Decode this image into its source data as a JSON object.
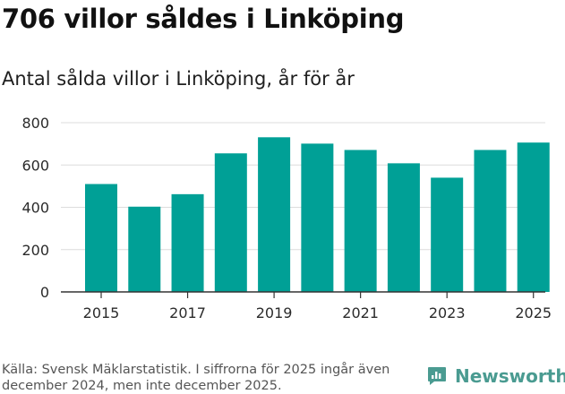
{
  "chart_data": {
    "type": "bar",
    "title": "706 villor såldes i Linköping",
    "subtitle": "Antal sålda villor i Linköping, år för år",
    "categories": [
      "2015",
      "2016",
      "2017",
      "2018",
      "2019",
      "2020",
      "2021",
      "2022",
      "2023",
      "2024",
      "2025"
    ],
    "values": [
      510,
      403,
      462,
      655,
      731,
      701,
      671,
      608,
      540,
      671,
      706
    ],
    "x_tick_labels": [
      "2015",
      "2017",
      "2019",
      "2021",
      "2023",
      "2025"
    ],
    "y_tick_labels": [
      "0",
      "200",
      "400",
      "600",
      "800"
    ],
    "ylim": [
      0,
      800
    ],
    "xlabel": "",
    "ylabel": "",
    "grid": true,
    "bar_color": "#00a096"
  },
  "footer": {
    "source": "Källa: Svensk Mäklarstatistik. I siffrorna för 2025 ingår även december 2024, men inte december 2025.",
    "brand": "Newsworthy",
    "brand_icon": "newsworthy-logo-icon",
    "brand_color": "#4a9b91"
  }
}
